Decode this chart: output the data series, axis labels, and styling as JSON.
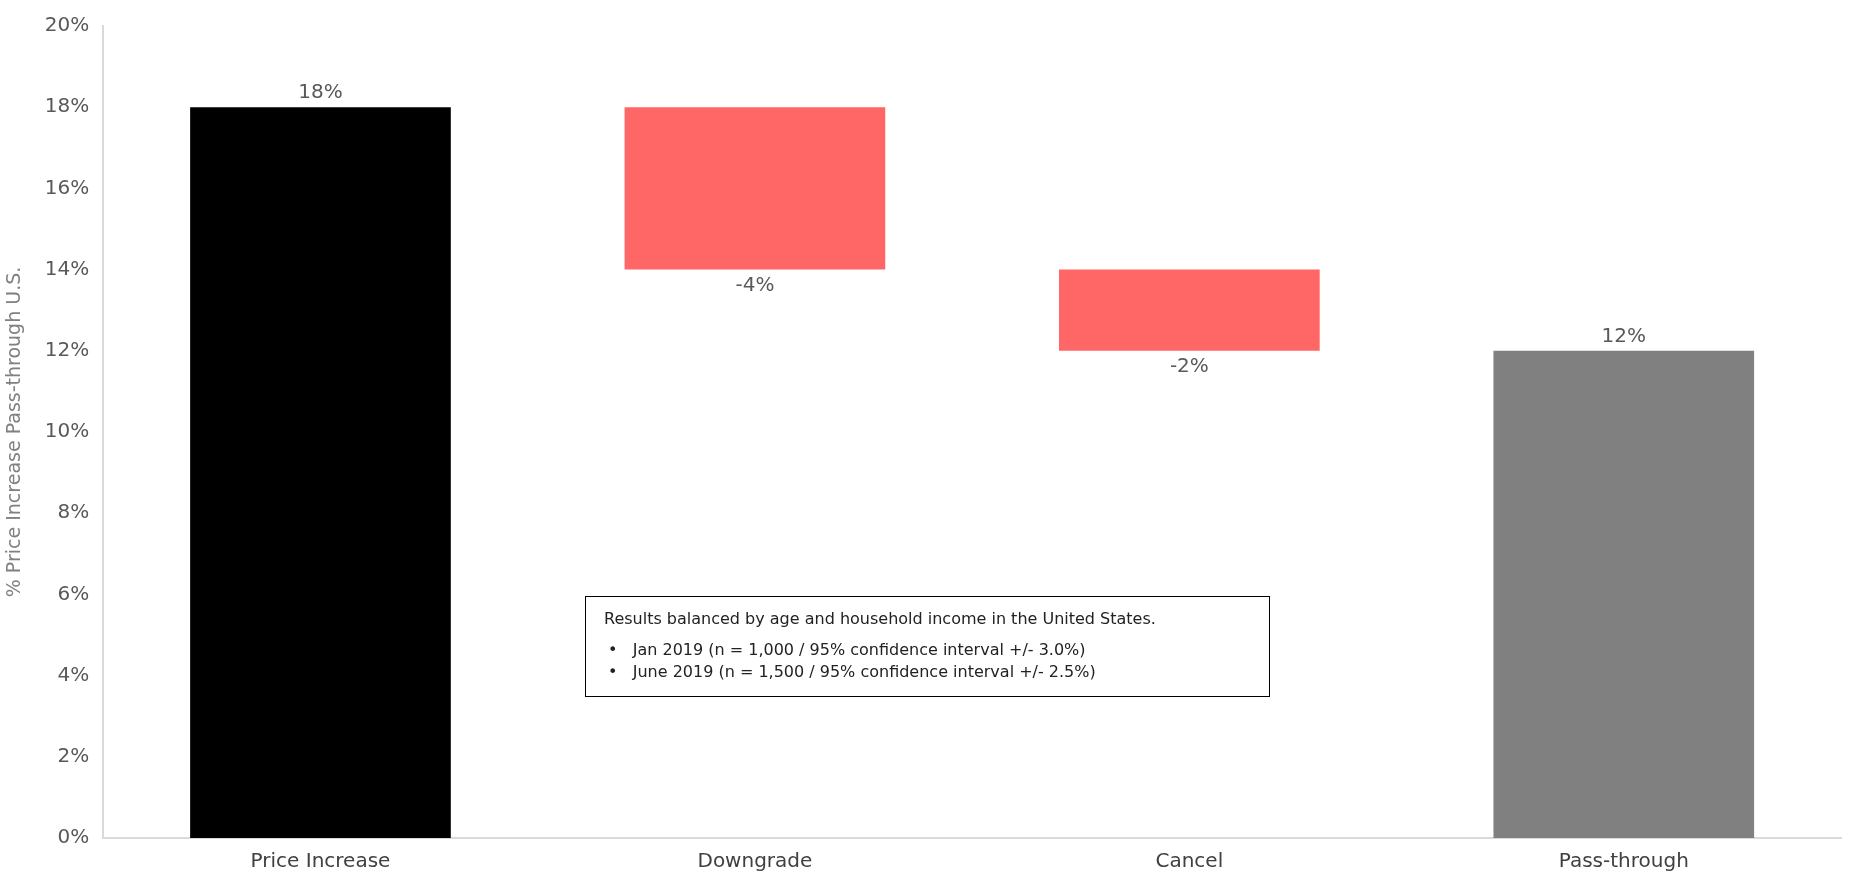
{
  "chart_data": {
    "type": "bar",
    "categories": [
      "Price Increase",
      "Downgrade",
      "Cancel",
      "Pass-through"
    ],
    "values": [
      18,
      -4,
      -2,
      12
    ],
    "base": [
      0,
      18,
      14,
      0
    ],
    "colors": [
      "#000000",
      "#ff6666",
      "#ff6666",
      "#808080"
    ],
    "value_labels": [
      "18%",
      "-4%",
      "-2%",
      "12%"
    ],
    "ylabel": "% Price Increase Pass-through U.S.",
    "ylim": [
      0,
      20
    ],
    "yticks": [
      {
        "value": 0,
        "label": "0%"
      },
      {
        "value": 2,
        "label": "2%"
      },
      {
        "value": 4,
        "label": "4%"
      },
      {
        "value": 6,
        "label": "6%"
      },
      {
        "value": 8,
        "label": "8%"
      },
      {
        "value": 10,
        "label": "10%"
      },
      {
        "value": 12,
        "label": "12%"
      },
      {
        "value": 14,
        "label": "14%"
      },
      {
        "value": 16,
        "label": "16%"
      },
      {
        "value": 18,
        "label": "18%"
      },
      {
        "value": 20,
        "label": "20%"
      }
    ],
    "grid": false,
    "legend": false,
    "annotations": [
      "Results balanced by age and household income in the United States.",
      "•   Jan 2019 (n = 1,000 / 95% confidence interval +/- 3.0%)",
      "•   June 2019 (n = 1,500 / 95% confidence interval +/- 2.5%)"
    ]
  }
}
